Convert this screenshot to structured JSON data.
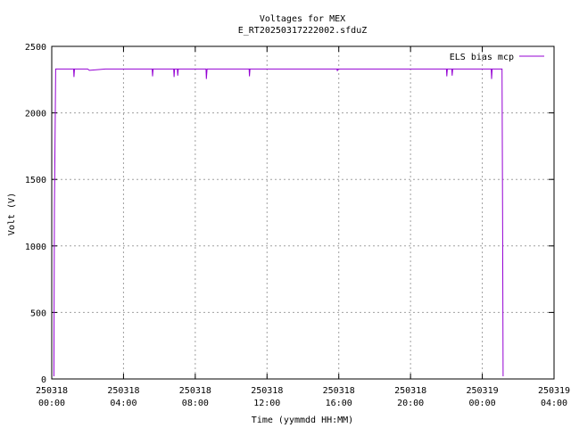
{
  "chart_data": {
    "type": "line",
    "title": "Voltages for MEX",
    "subtitle": "E_RT20250317222002.sfduZ",
    "xlabel": "Time (yymmdd HH:MM)",
    "ylabel": "Volt (V)",
    "ylim": [
      0,
      2500
    ],
    "xlim": [
      0,
      28
    ],
    "yticks": [
      0,
      500,
      1000,
      1500,
      2000,
      2500
    ],
    "xticks": [
      {
        "pos": 0,
        "date": "250318",
        "time": "00:00"
      },
      {
        "pos": 4,
        "date": "250318",
        "time": "04:00"
      },
      {
        "pos": 8,
        "date": "250318",
        "time": "08:00"
      },
      {
        "pos": 12,
        "date": "250318",
        "time": "12:00"
      },
      {
        "pos": 16,
        "date": "250318",
        "time": "16:00"
      },
      {
        "pos": 20,
        "date": "250318",
        "time": "20:00"
      },
      {
        "pos": 24,
        "date": "250319",
        "time": "00:00"
      },
      {
        "pos": 28,
        "date": "250319",
        "time": "04:00"
      }
    ],
    "grid": true,
    "legend_position": "top-right",
    "series": [
      {
        "name": "ELS bias mcp",
        "color": "#9400d3",
        "points": [
          [
            0.12,
            20
          ],
          [
            0.15,
            1280
          ],
          [
            0.22,
            2330
          ],
          [
            0.6,
            2330
          ],
          [
            0.8,
            2330
          ],
          [
            1.22,
            2330
          ],
          [
            1.24,
            2270
          ],
          [
            1.27,
            2330
          ],
          [
            2.0,
            2330
          ],
          [
            2.1,
            2320
          ],
          [
            3.0,
            2330
          ],
          [
            4.0,
            2330
          ],
          [
            4.5,
            2330
          ],
          [
            5.6,
            2330
          ],
          [
            5.62,
            2275
          ],
          [
            5.65,
            2330
          ],
          [
            6.8,
            2330
          ],
          [
            6.82,
            2270
          ],
          [
            6.85,
            2330
          ],
          [
            7.0,
            2330
          ],
          [
            7.02,
            2280
          ],
          [
            7.05,
            2330
          ],
          [
            8.6,
            2330
          ],
          [
            8.62,
            2255
          ],
          [
            8.66,
            2330
          ],
          [
            9.0,
            2330
          ],
          [
            10.0,
            2330
          ],
          [
            11.0,
            2330
          ],
          [
            11.02,
            2275
          ],
          [
            11.05,
            2330
          ],
          [
            12.0,
            2330
          ],
          [
            14.0,
            2330
          ],
          [
            15.9,
            2330
          ],
          [
            15.92,
            2315
          ],
          [
            15.95,
            2330
          ],
          [
            18.0,
            2330
          ],
          [
            22.0,
            2330
          ],
          [
            22.02,
            2275
          ],
          [
            22.05,
            2330
          ],
          [
            22.3,
            2330
          ],
          [
            22.32,
            2280
          ],
          [
            22.35,
            2330
          ],
          [
            24.0,
            2330
          ],
          [
            24.5,
            2330
          ],
          [
            24.52,
            2255
          ],
          [
            24.55,
            2330
          ],
          [
            25.1,
            2330
          ],
          [
            25.13,
            1280
          ],
          [
            25.16,
            20
          ]
        ]
      }
    ]
  }
}
